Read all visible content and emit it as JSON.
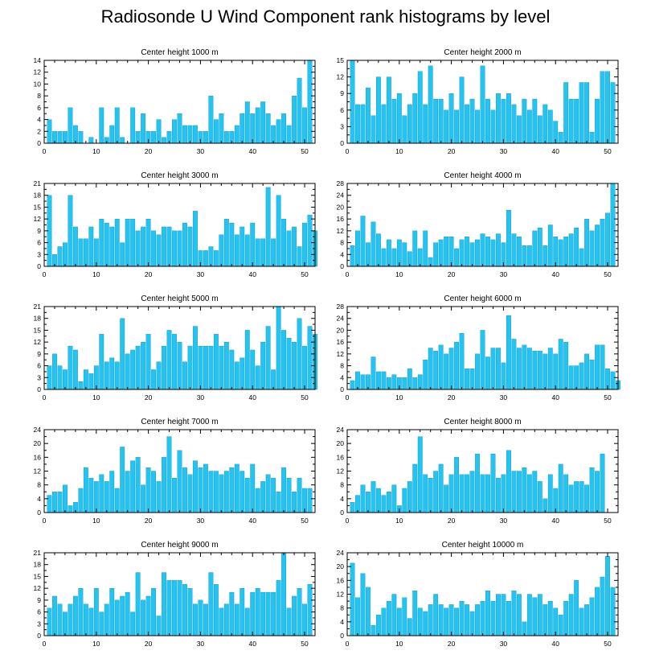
{
  "title": "Radiosonde U Wind Component rank histograms by level",
  "colors": {
    "bar": "#22c4f2",
    "bar_edge": "#0077aa",
    "axis": "#000000"
  },
  "chart_data": [
    {
      "type": "bar",
      "title": "Center height 1000 m",
      "xlim": [
        0,
        52
      ],
      "ylim": [
        0,
        14
      ],
      "xticks": [
        0,
        10,
        20,
        30,
        40,
        50
      ],
      "yticks": [
        0,
        2,
        4,
        6,
        8,
        10,
        12,
        14
      ],
      "values": [
        4,
        2,
        2,
        2,
        6,
        3,
        2,
        0,
        1,
        0,
        6,
        1,
        3,
        6,
        1,
        0,
        6,
        2,
        5,
        2,
        2,
        4,
        1,
        2,
        4,
        5,
        3,
        3,
        3,
        2,
        2,
        8,
        4,
        5,
        2,
        2,
        3,
        5,
        7,
        5,
        6,
        7,
        5,
        3,
        4,
        5,
        3,
        8,
        11,
        6,
        14
      ]
    },
    {
      "type": "bar",
      "title": "Center height 2000 m",
      "xlim": [
        0,
        52
      ],
      "ylim": [
        0,
        15
      ],
      "xticks": [
        0,
        10,
        20,
        30,
        40,
        50
      ],
      "yticks": [
        0,
        3,
        6,
        9,
        12,
        15
      ],
      "values": [
        15,
        7,
        7,
        10,
        5,
        12,
        7,
        12,
        8,
        9,
        5,
        7,
        9,
        13,
        7,
        14,
        8,
        8,
        6,
        9,
        6,
        12,
        7,
        8,
        6,
        14,
        8,
        6,
        9,
        8,
        9,
        7,
        5,
        8,
        6,
        8,
        5,
        7,
        6,
        4,
        2,
        11,
        8,
        8,
        11,
        11,
        2,
        8,
        13,
        13,
        11
      ]
    },
    {
      "type": "bar",
      "title": "Center height 3000 m",
      "xlim": [
        0,
        52
      ],
      "ylim": [
        0,
        21
      ],
      "xticks": [
        0,
        10,
        20,
        30,
        40,
        50
      ],
      "yticks": [
        0,
        3,
        6,
        9,
        12,
        15,
        18,
        21
      ],
      "values": [
        18,
        3,
        5,
        6,
        18,
        10,
        7,
        7,
        10,
        7,
        12,
        11,
        10,
        12,
        6,
        12,
        12,
        9,
        10,
        12,
        9,
        8,
        10,
        10,
        9,
        9,
        11,
        10,
        14,
        4,
        4,
        5,
        4,
        8,
        12,
        11,
        8,
        10,
        8,
        11,
        7,
        7,
        20,
        7,
        18,
        12,
        9,
        10,
        5,
        11,
        13,
        9
      ]
    },
    {
      "type": "bar",
      "title": "Center height 4000 m",
      "xlim": [
        0,
        52
      ],
      "ylim": [
        0,
        28
      ],
      "xticks": [
        0,
        10,
        20,
        30,
        40,
        50
      ],
      "yticks": [
        0,
        4,
        8,
        12,
        16,
        20,
        24,
        28
      ],
      "values": [
        7,
        12,
        17,
        8,
        15,
        11,
        6,
        9,
        6,
        9,
        8,
        5,
        12,
        6,
        12,
        3,
        8,
        9,
        10,
        10,
        6,
        9,
        10,
        8,
        9,
        11,
        10,
        9,
        11,
        8,
        19,
        11,
        10,
        7,
        7,
        12,
        13,
        7,
        14,
        10,
        9,
        10,
        11,
        13,
        6,
        16,
        12,
        14,
        16,
        18,
        28
      ]
    },
    {
      "type": "bar",
      "title": "Center height 5000 m",
      "xlim": [
        0,
        52
      ],
      "ylim": [
        0,
        21
      ],
      "xticks": [
        0,
        10,
        20,
        30,
        40,
        50
      ],
      "yticks": [
        0,
        3,
        6,
        9,
        12,
        15,
        18,
        21
      ],
      "values": [
        6,
        9,
        6,
        5,
        11,
        10,
        2,
        5,
        4,
        6,
        14,
        7,
        8,
        7,
        18,
        9,
        10,
        11,
        12,
        14,
        5,
        7,
        11,
        15,
        14,
        12,
        7,
        11,
        16,
        11,
        11,
        11,
        14,
        11,
        12,
        10,
        7,
        8,
        15,
        10,
        6,
        12,
        16,
        5,
        21,
        15,
        13,
        12,
        18,
        11,
        16,
        14
      ]
    },
    {
      "type": "bar",
      "title": "Center height 6000 m",
      "xlim": [
        0,
        52
      ],
      "ylim": [
        0,
        28
      ],
      "xticks": [
        0,
        10,
        20,
        30,
        40,
        50
      ],
      "yticks": [
        0,
        4,
        8,
        12,
        16,
        20,
        24,
        28
      ],
      "values": [
        3,
        6,
        5,
        5,
        11,
        6,
        6,
        4,
        5,
        4,
        4,
        7,
        4,
        5,
        10,
        14,
        13,
        15,
        12,
        14,
        16,
        19,
        7,
        7,
        12,
        20,
        11,
        14,
        14,
        9,
        25,
        17,
        14,
        15,
        14,
        13,
        13,
        12,
        14,
        12,
        17,
        16,
        8,
        8,
        9,
        12,
        10,
        15,
        15,
        7,
        6,
        3
      ]
    },
    {
      "type": "bar",
      "title": "Center height 7000 m",
      "xlim": [
        0,
        52
      ],
      "ylim": [
        0,
        24
      ],
      "xticks": [
        0,
        10,
        20,
        30,
        40,
        50
      ],
      "yticks": [
        0,
        4,
        8,
        12,
        16,
        20,
        24
      ],
      "values": [
        5,
        6,
        6,
        8,
        2,
        3,
        7,
        13,
        10,
        9,
        11,
        9,
        12,
        7,
        19,
        12,
        15,
        16,
        8,
        13,
        12,
        9,
        16,
        22,
        10,
        18,
        13,
        11,
        15,
        13,
        14,
        12,
        12,
        11,
        12,
        13,
        14,
        12,
        10,
        14,
        7,
        9,
        11,
        10,
        6,
        13,
        10,
        6,
        10,
        7,
        7
      ]
    },
    {
      "type": "bar",
      "title": "Center height 8000 m",
      "xlim": [
        0,
        52
      ],
      "ylim": [
        0,
        24
      ],
      "xticks": [
        0,
        10,
        20,
        30,
        40,
        50
      ],
      "yticks": [
        0,
        4,
        8,
        12,
        16,
        20,
        24
      ],
      "values": [
        3,
        5,
        8,
        6,
        9,
        7,
        5,
        6,
        8,
        2,
        7,
        9,
        14,
        22,
        11,
        10,
        12,
        14,
        8,
        11,
        16,
        11,
        11,
        12,
        17,
        11,
        11,
        17,
        10,
        11,
        18,
        12,
        12,
        13,
        11,
        12,
        9,
        4,
        11,
        7,
        14,
        11,
        8,
        9,
        9,
        8,
        13,
        12,
        17
      ]
    },
    {
      "type": "bar",
      "title": "Center height 9000 m",
      "xlim": [
        0,
        52
      ],
      "ylim": [
        0,
        21
      ],
      "xticks": [
        0,
        10,
        20,
        30,
        40,
        50
      ],
      "yticks": [
        0,
        3,
        6,
        9,
        12,
        15,
        18,
        21
      ],
      "values": [
        7,
        10,
        8,
        6,
        8,
        10,
        12,
        8,
        7,
        12,
        6,
        8,
        12,
        9,
        10,
        11,
        6,
        16,
        9,
        10,
        12,
        5,
        16,
        14,
        14,
        14,
        13,
        12,
        8,
        9,
        8,
        16,
        13,
        7,
        8,
        11,
        8,
        12,
        7,
        11,
        12,
        11,
        11,
        11,
        14,
        21,
        7,
        10,
        12,
        8,
        13
      ]
    },
    {
      "type": "bar",
      "title": "Center height 10000 m",
      "xlim": [
        0,
        52
      ],
      "ylim": [
        0,
        24
      ],
      "xticks": [
        0,
        10,
        20,
        30,
        40,
        50
      ],
      "yticks": [
        0,
        4,
        8,
        12,
        16,
        20,
        24
      ],
      "values": [
        21,
        11,
        18,
        14,
        3,
        6,
        8,
        10,
        12,
        8,
        11,
        5,
        13,
        8,
        7,
        9,
        12,
        9,
        8,
        9,
        8,
        10,
        9,
        7,
        9,
        10,
        13,
        10,
        12,
        12,
        10,
        13,
        12,
        4,
        12,
        11,
        12,
        9,
        10,
        8,
        6,
        10,
        12,
        16,
        8,
        9,
        11,
        14,
        17,
        23,
        14
      ]
    }
  ]
}
